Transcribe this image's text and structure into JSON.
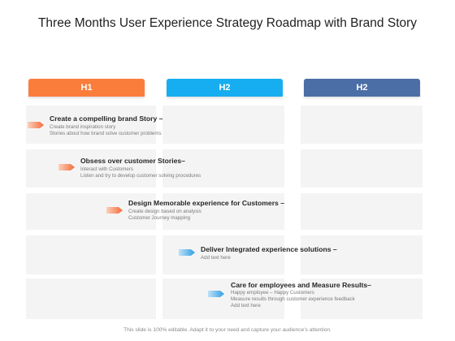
{
  "title": "Three Months User Experience Strategy Roadmap with Brand Story",
  "colors": {
    "h1": "#fb7d3c",
    "h2a": "#16aef0",
    "h2b": "#4b6ea6",
    "orange_arrow": "#f46b3c",
    "blue_arrow": "#2f9fe3"
  },
  "headers": [
    {
      "label": "H1"
    },
    {
      "label": "H2"
    },
    {
      "label": "H2"
    }
  ],
  "items": [
    {
      "title": "Create a compelling brand Story –",
      "lines": [
        "Create brand inspiration story",
        "Stories about how brand solve customer problems"
      ],
      "arrow": "orange"
    },
    {
      "title": "Obsess over customer Stories–",
      "lines": [
        "Interact with Customers",
        "Listen and try to develop customer solving procedures"
      ],
      "arrow": "orange"
    },
    {
      "title": "Design Memorable experience for Customers –",
      "lines": [
        "Create design based on analysis",
        "Customer Journey mapping"
      ],
      "arrow": "orange"
    },
    {
      "title": "Deliver Integrated experience solutions –",
      "lines": [
        "Add text here"
      ],
      "arrow": "blue"
    },
    {
      "title": "Care for employees and Measure Results–",
      "lines": [
        "Happy employee – Happy Customers",
        "Measure results through customer experience feedback",
        "Add text here"
      ],
      "arrow": "blue"
    }
  ],
  "footer": "This slide is 100% editable. Adapt it to your need and capture your audience’s attention."
}
